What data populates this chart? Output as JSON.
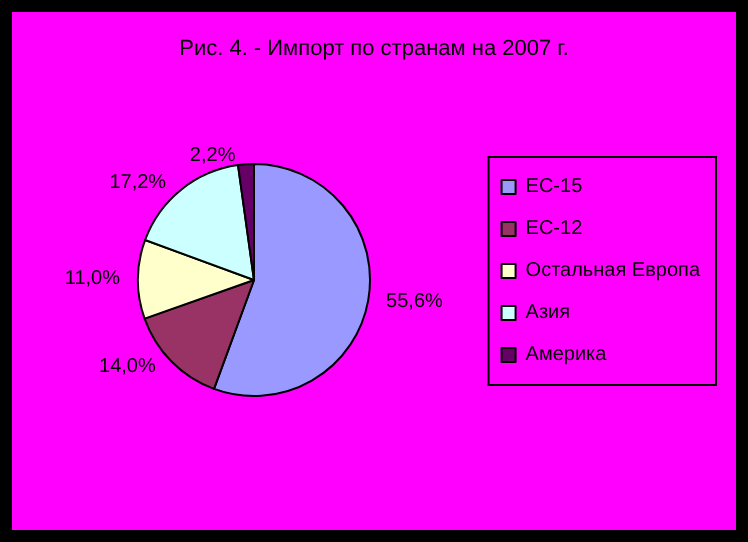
{
  "chart_data": {
    "type": "pie",
    "title": "Рис. 4. - Импорт по странам на 2007 г.",
    "categories": [
      "ЕС-15",
      "ЕС-12",
      "Остальная Европа",
      "Азия",
      "Америка"
    ],
    "values": [
      55.6,
      14.0,
      11.0,
      17.2,
      2.2
    ],
    "value_labels": [
      "55,6%",
      "14,0%",
      "11,0%",
      "17,2%",
      "2,2%"
    ],
    "colors": [
      "#9999ff",
      "#993366",
      "#ffffcc",
      "#ccffff",
      "#660066"
    ],
    "legend": "right"
  }
}
